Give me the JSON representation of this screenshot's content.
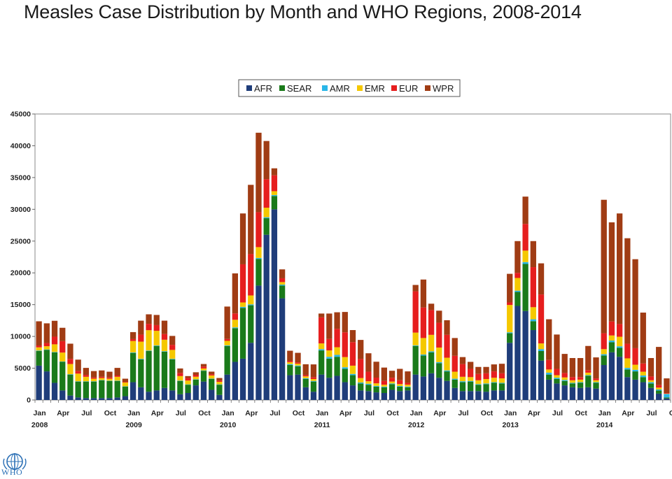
{
  "title": "Measles Case Distribution by Month and WHO Regions, 2008-2014",
  "logo": {
    "text": "WHO"
  },
  "chart_data": {
    "type": "bar",
    "stacked": true,
    "ylim": [
      0,
      45000
    ],
    "yticks": [
      0,
      5000,
      10000,
      15000,
      20000,
      25000,
      30000,
      35000,
      40000,
      45000
    ],
    "legend_position": "top-center",
    "grid": false,
    "tick_labels": [
      {
        "index": 0,
        "month": "Jan",
        "year": "2008"
      },
      {
        "index": 3,
        "month": "Apr"
      },
      {
        "index": 6,
        "month": "Jul"
      },
      {
        "index": 9,
        "month": "Oct"
      },
      {
        "index": 12,
        "month": "Jan",
        "year": "2009"
      },
      {
        "index": 15,
        "month": "Apr"
      },
      {
        "index": 18,
        "month": "Jul"
      },
      {
        "index": 21,
        "month": "Oct"
      },
      {
        "index": 24,
        "month": "Jan",
        "year": "2010"
      },
      {
        "index": 27,
        "month": "Apr"
      },
      {
        "index": 30,
        "month": "Jul"
      },
      {
        "index": 33,
        "month": "Oct"
      },
      {
        "index": 36,
        "month": "Jan",
        "year": "2011"
      },
      {
        "index": 39,
        "month": "Apr"
      },
      {
        "index": 42,
        "month": "Jul"
      },
      {
        "index": 45,
        "month": "Oct"
      },
      {
        "index": 48,
        "month": "Jan",
        "year": "2012"
      },
      {
        "index": 51,
        "month": "Apr"
      },
      {
        "index": 54,
        "month": "Jul"
      },
      {
        "index": 57,
        "month": "Oct"
      },
      {
        "index": 60,
        "month": "Jan",
        "year": "2013"
      },
      {
        "index": 63,
        "month": "Apr"
      },
      {
        "index": 66,
        "month": "Jul"
      },
      {
        "index": 69,
        "month": "Oct"
      },
      {
        "index": 72,
        "month": "Jan",
        "year": "2014"
      },
      {
        "index": 75,
        "month": "Apr"
      },
      {
        "index": 78,
        "month": "Jul"
      },
      {
        "index": 81,
        "month": "Oct"
      }
    ],
    "series": [
      {
        "name": "AFR",
        "color": "#1f3d7a",
        "values": [
          5400,
          4500,
          2700,
          1500,
          700,
          400,
          300,
          300,
          300,
          300,
          400,
          600,
          2800,
          2000,
          1300,
          1500,
          1900,
          1500,
          900,
          1100,
          2300,
          2900,
          1600,
          800,
          4000,
          6000,
          6500,
          9000,
          18000,
          26000,
          30000,
          16000,
          3900,
          4000,
          2000,
          1300,
          4000,
          3500,
          3800,
          2800,
          2300,
          1500,
          1400,
          1200,
          1100,
          1600,
          1400,
          1500,
          4000,
          3700,
          4200,
          3500,
          3000,
          1900,
          1400,
          1400,
          1400,
          1300,
          1500,
          1500,
          9000,
          14800,
          14000,
          11000,
          6200,
          3200,
          2600,
          2300,
          2000,
          1900,
          2000,
          1800,
          5500,
          7500,
          6800,
          3600,
          3200,
          2800,
          1900,
          1000,
          250
        ]
      },
      {
        "name": "SEAR",
        "color": "#1a7a1a",
        "values": [
          2300,
          3400,
          4800,
          4500,
          3300,
          2500,
          2600,
          2600,
          2800,
          2700,
          2600,
          1500,
          4600,
          4400,
          6400,
          7000,
          5700,
          4900,
          2100,
          1300,
          900,
          1700,
          1700,
          1600,
          4500,
          5300,
          8000,
          5900,
          4200,
          2600,
          2100,
          2000,
          1600,
          1300,
          1300,
          1600,
          3800,
          3000,
          3000,
          2100,
          1600,
          1100,
          1000,
          900,
          900,
          900,
          700,
          500,
          4500,
          3300,
          3300,
          2300,
          1500,
          1300,
          1400,
          1500,
          1000,
          1200,
          1200,
          1100,
          1500,
          2200,
          7400,
          1400,
          1500,
          800,
          700,
          700,
          600,
          800,
          1800,
          900,
          1500,
          1600,
          1400,
          1200,
          1300,
          800,
          700,
          500,
          150
        ]
      },
      {
        "name": "AMR",
        "color": "#29b6e8",
        "values": [
          80,
          60,
          60,
          60,
          60,
          50,
          50,
          50,
          50,
          50,
          50,
          50,
          80,
          80,
          80,
          80,
          80,
          80,
          60,
          60,
          60,
          60,
          60,
          60,
          100,
          120,
          150,
          150,
          150,
          150,
          150,
          150,
          150,
          120,
          120,
          100,
          200,
          300,
          300,
          250,
          200,
          150,
          150,
          120,
          100,
          100,
          100,
          100,
          100,
          150,
          150,
          150,
          150,
          150,
          150,
          100,
          100,
          100,
          100,
          100,
          150,
          200,
          300,
          300,
          300,
          300,
          200,
          150,
          100,
          100,
          100,
          100,
          200,
          250,
          250,
          250,
          250,
          250,
          200,
          150,
          550
        ]
      },
      {
        "name": "EMR",
        "color": "#f5c800",
        "values": [
          500,
          500,
          1200,
          1400,
          1600,
          1200,
          700,
          400,
          300,
          300,
          600,
          600,
          1800,
          2700,
          3200,
          2300,
          1800,
          1400,
          700,
          600,
          400,
          300,
          500,
          400,
          700,
          1200,
          700,
          1400,
          1700,
          1500,
          600,
          400,
          300,
          300,
          300,
          300,
          900,
          1000,
          1200,
          1600,
          1300,
          700,
          400,
          400,
          300,
          300,
          300,
          300,
          2000,
          2600,
          2600,
          2300,
          2000,
          1100,
          700,
          600,
          600,
          700,
          700,
          700,
          4300,
          2000,
          1800,
          1900,
          900,
          500,
          400,
          400,
          400,
          400,
          400,
          300,
          800,
          800,
          1500,
          1500,
          800,
          600,
          300,
          300,
          50
        ]
      },
      {
        "name": "EUR",
        "color": "#e61e1e",
        "values": [
          300,
          500,
          1200,
          1800,
          800,
          400,
          300,
          200,
          200,
          200,
          200,
          100,
          300,
          1100,
          1000,
          900,
          900,
          800,
          500,
          400,
          300,
          300,
          200,
          200,
          300,
          1000,
          6000,
          6500,
          5500,
          4500,
          2500,
          600,
          200,
          200,
          200,
          300,
          4100,
          1800,
          2900,
          3900,
          3700,
          3000,
          1500,
          900,
          600,
          600,
          600,
          300,
          6500,
          4800,
          3900,
          3900,
          3600,
          2500,
          2000,
          1300,
          1000,
          900,
          1000,
          800,
          400,
          800,
          4200,
          6300,
          7700,
          1500,
          1000,
          700,
          500,
          400,
          400,
          300,
          2500,
          2200,
          2000,
          2300,
          2600,
          1300,
          600,
          400,
          100
        ]
      },
      {
        "name": "WPR",
        "color": "#a03c14",
        "values": [
          3800,
          3100,
          2500,
          2100,
          2400,
          1800,
          1100,
          1000,
          1000,
          900,
          1200,
          500,
          1100,
          2200,
          1500,
          1600,
          2100,
          1400,
          700,
          300,
          400,
          400,
          400,
          400,
          5100,
          6300,
          8000,
          10900,
          12500,
          6000,
          1100,
          1400,
          1600,
          1500,
          1700,
          2000,
          600,
          4000,
          2600,
          3200,
          1900,
          3000,
          2900,
          2500,
          2100,
          1100,
          1800,
          1800,
          1000,
          4400,
          1000,
          1900,
          2300,
          2800,
          1100,
          1100,
          1100,
          1000,
          1100,
          1500,
          4500,
          5000,
          4300,
          4100,
          4900,
          6400,
          5400,
          3000,
          3000,
          3000,
          3800,
          3300,
          21000,
          15600,
          17400,
          16600,
          14000,
          8000,
          2900,
          6000,
          2300
        ]
      }
    ]
  }
}
